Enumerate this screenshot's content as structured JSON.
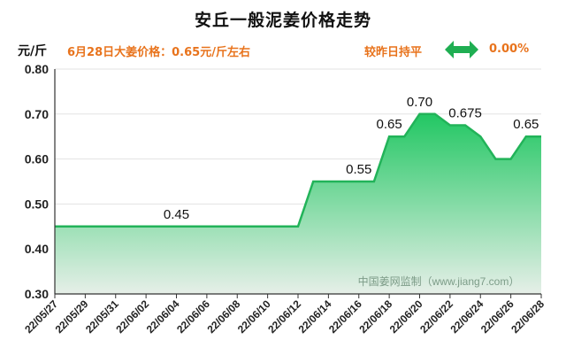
{
  "chart_data": {
    "type": "area",
    "title": "安丘一般泥姜价格走势",
    "ylabel": "元/斤",
    "ylim": [
      0.3,
      0.8
    ],
    "yticks": [
      "0.30",
      "0.40",
      "0.50",
      "0.60",
      "0.70",
      "0.80"
    ],
    "x": [
      "22/05/27",
      "22/05/28",
      "22/05/29",
      "22/05/30",
      "22/05/31",
      "22/06/01",
      "22/06/02",
      "22/06/03",
      "22/06/04",
      "22/06/05",
      "22/06/06",
      "22/06/07",
      "22/06/08",
      "22/06/09",
      "22/06/10",
      "22/06/11",
      "22/06/12",
      "22/06/13",
      "22/06/14",
      "22/06/15",
      "22/06/16",
      "22/06/17",
      "22/06/18",
      "22/06/19",
      "22/06/20",
      "22/06/21",
      "22/06/22",
      "22/06/23",
      "22/06/24",
      "22/06/25",
      "22/06/26",
      "22/06/27",
      "22/06/28"
    ],
    "xtick_labels": [
      "22/05/27",
      "22/05/29",
      "22/05/31",
      "22/06/02",
      "22/06/04",
      "22/06/06",
      "22/06/08",
      "22/06/10",
      "22/06/12",
      "22/06/14",
      "22/06/16",
      "22/06/18",
      "22/06/20",
      "22/06/22",
      "22/06/24",
      "22/06/26",
      "22/06/28"
    ],
    "values": [
      0.45,
      0.45,
      0.45,
      0.45,
      0.45,
      0.45,
      0.45,
      0.45,
      0.45,
      0.45,
      0.45,
      0.45,
      0.45,
      0.45,
      0.45,
      0.45,
      0.45,
      0.55,
      0.55,
      0.55,
      0.55,
      0.55,
      0.65,
      0.65,
      0.7,
      0.7,
      0.675,
      0.675,
      0.65,
      0.6,
      0.6,
      0.65,
      0.65
    ],
    "data_labels": [
      {
        "index": 8,
        "text": "0.45"
      },
      {
        "index": 20,
        "text": "0.55"
      },
      {
        "index": 22,
        "text": "0.65"
      },
      {
        "index": 24,
        "text": "0.70"
      },
      {
        "index": 27,
        "text": "0.675"
      },
      {
        "index": 31,
        "text": "0.65"
      }
    ],
    "grid": true,
    "colors": {
      "line": "#22b359",
      "fill_top": "#22c763",
      "fill_bottom": "#e6efe8",
      "axis": "#333333",
      "grid": "#e3e3e3",
      "accent": "#e8731c"
    }
  },
  "header": {
    "unit": "元/斤",
    "price_note": "6月28日大姜价格：0.65元/斤左右",
    "compare_label": "较昨日持平",
    "change_value": "0.00%",
    "change_icon": "double-arrow-icon"
  },
  "watermark": "中国姜网监制（www.jiang7.com）"
}
